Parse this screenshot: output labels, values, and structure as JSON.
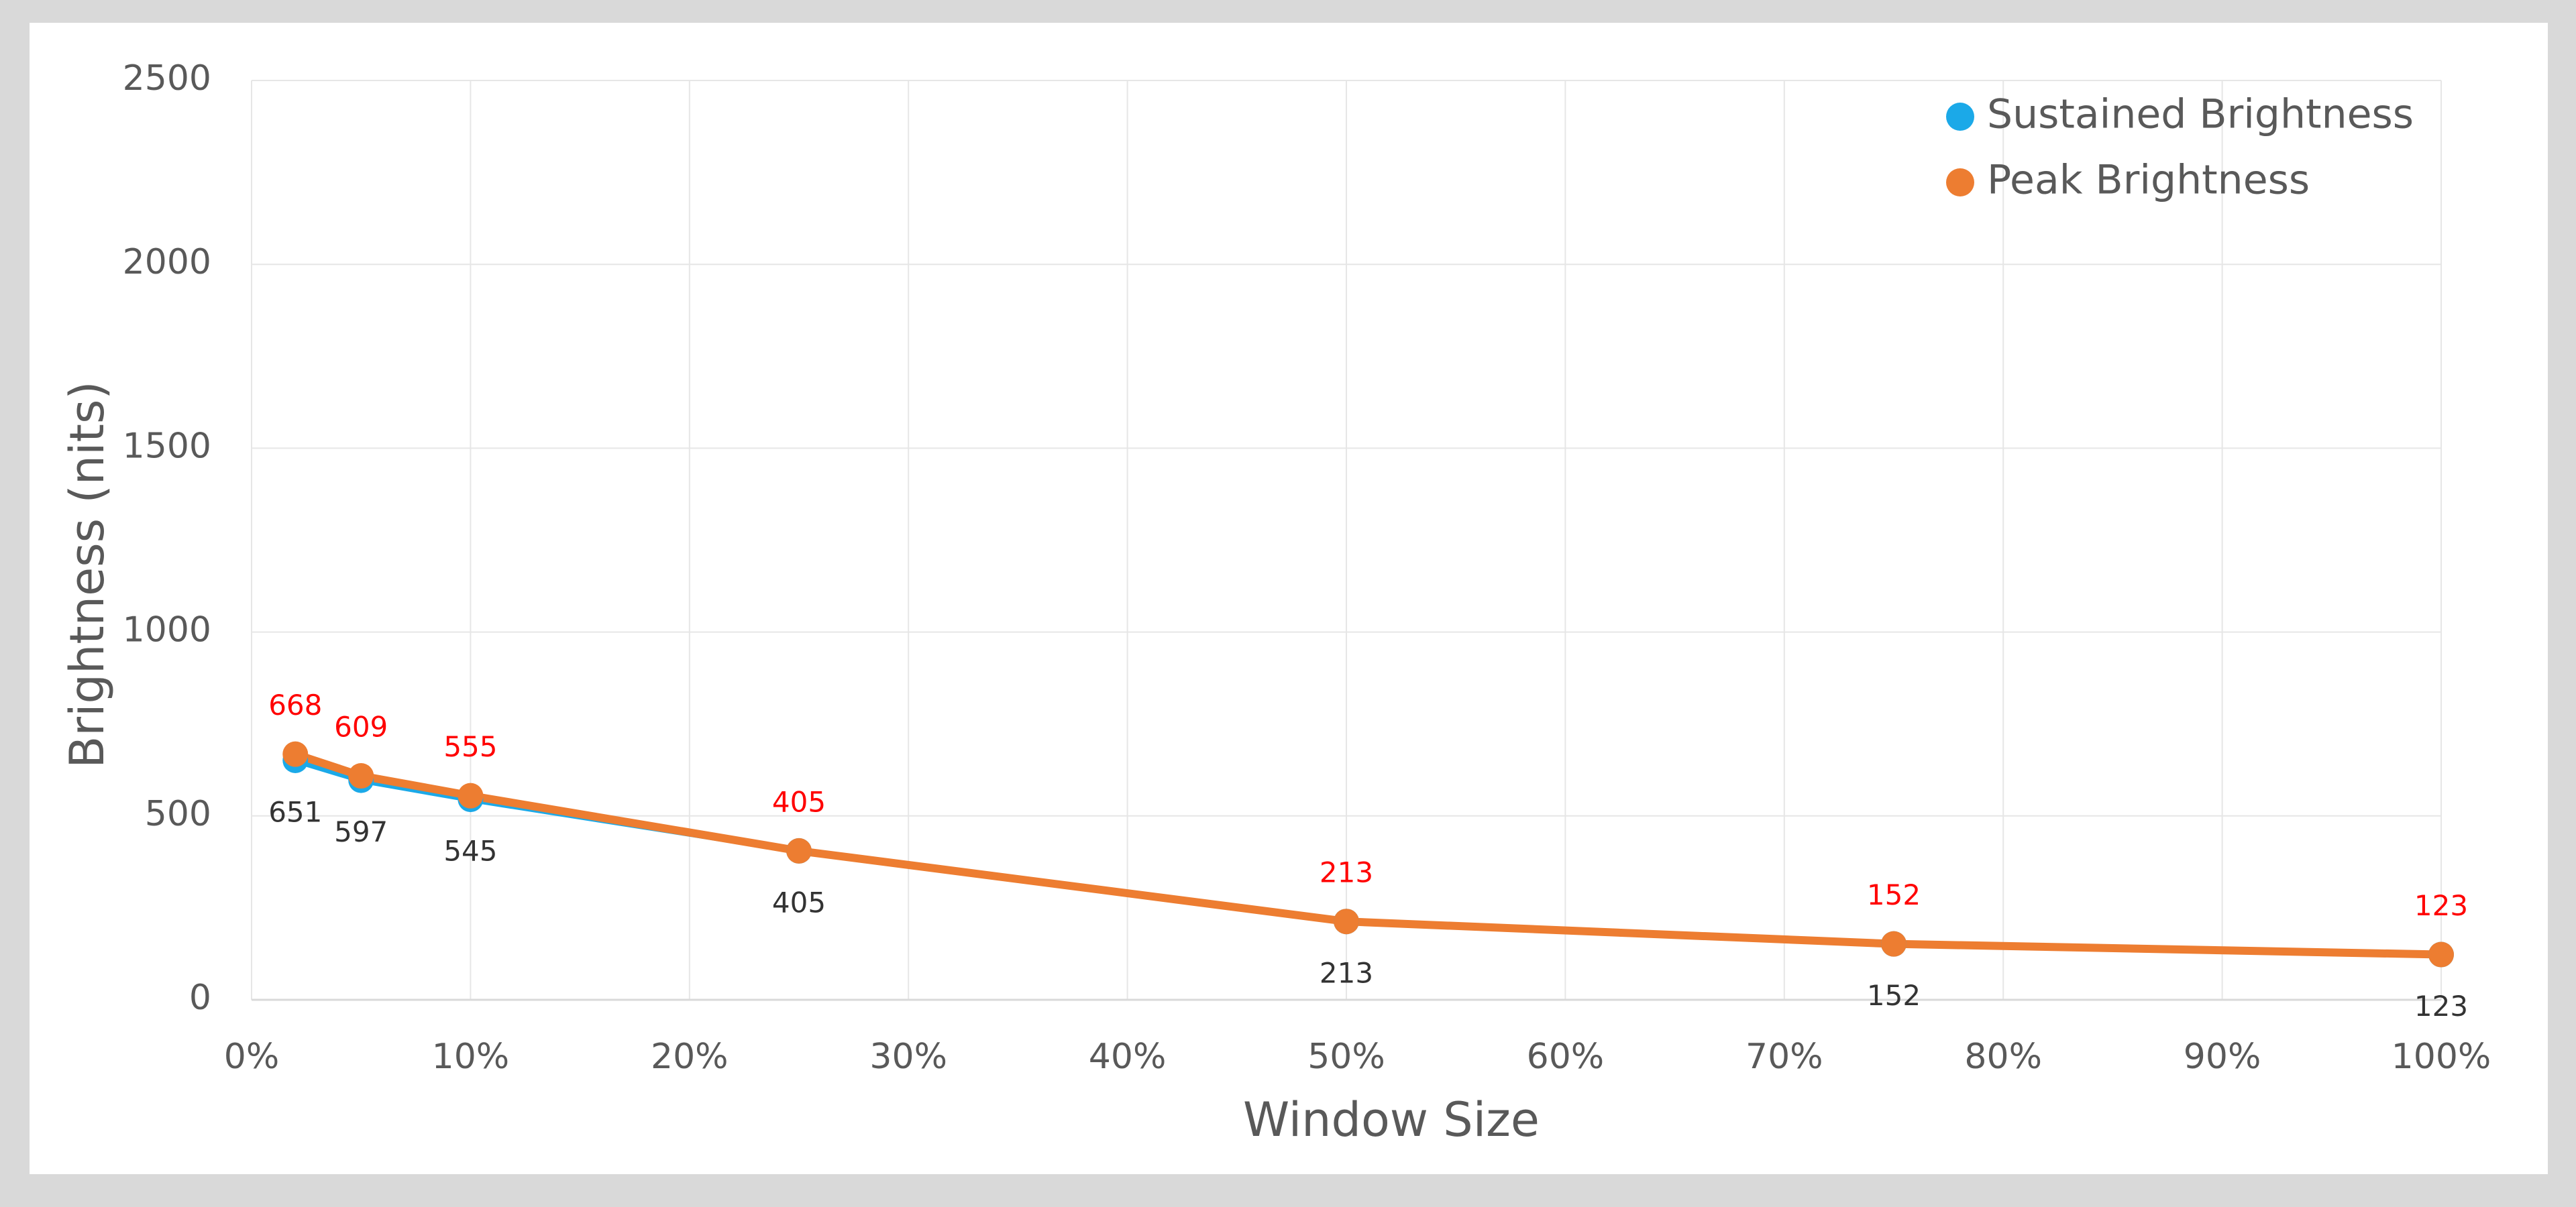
{
  "chart_data": {
    "type": "line",
    "x_label": "Window Size",
    "y_label": "Brightness (nits)",
    "x": [
      2,
      5,
      10,
      25,
      50,
      75,
      100
    ],
    "series": [
      {
        "name": "Sustained Brightness",
        "color": "#1ba9e8",
        "label_color": "#333333",
        "label_position": "below",
        "values": [
          651,
          597,
          545,
          405,
          213,
          152,
          123
        ]
      },
      {
        "name": "Peak Brightness",
        "color": "#ed7d31",
        "label_color": "#ff0000",
        "label_position": "above",
        "values": [
          668,
          609,
          555,
          405,
          213,
          152,
          123
        ]
      }
    ],
    "xlim": [
      0,
      100
    ],
    "xticks": [
      {
        "value": 0,
        "label": "0%"
      },
      {
        "value": 10,
        "label": "10%"
      },
      {
        "value": 20,
        "label": "20%"
      },
      {
        "value": 30,
        "label": "30%"
      },
      {
        "value": 40,
        "label": "40%"
      },
      {
        "value": 50,
        "label": "50%"
      },
      {
        "value": 60,
        "label": "60%"
      },
      {
        "value": 70,
        "label": "70%"
      },
      {
        "value": 80,
        "label": "80%"
      },
      {
        "value": 90,
        "label": "90%"
      },
      {
        "value": 100,
        "label": "100%"
      }
    ],
    "ylim": [
      0,
      2500
    ],
    "yticks": [
      0,
      500,
      1000,
      1500,
      2000,
      2500
    ],
    "grid": true,
    "legend": "top-right"
  }
}
